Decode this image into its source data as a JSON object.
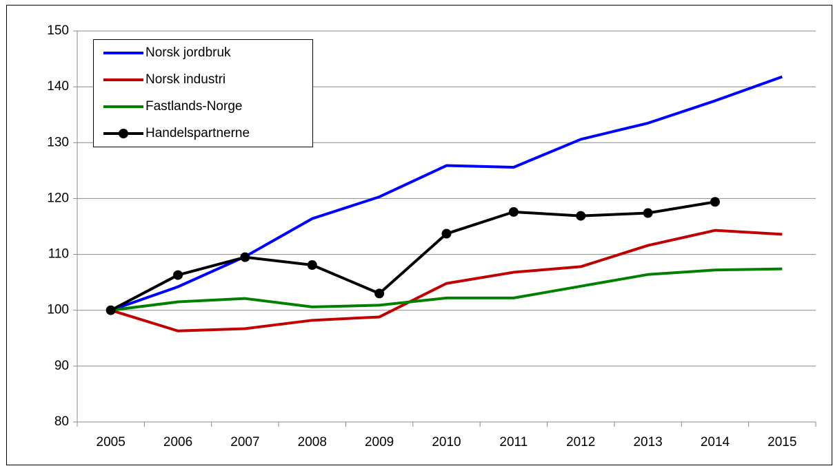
{
  "chart_data": {
    "type": "line",
    "categories": [
      "2005",
      "2006",
      "2007",
      "2008",
      "2009",
      "2010",
      "2011",
      "2012",
      "2013",
      "2014",
      "2015"
    ],
    "series": [
      {
        "name": "Norsk jordbruk",
        "color": "#0000ff",
        "markers": false,
        "values": [
          100,
          104.2,
          109.6,
          116.4,
          120.3,
          125.9,
          125.6,
          130.6,
          133.5,
          137.5,
          141.8
        ]
      },
      {
        "name": "Norsk industri",
        "color": "#c00000",
        "markers": false,
        "values": [
          100,
          96.3,
          96.7,
          98.2,
          98.8,
          104.8,
          106.8,
          107.8,
          111.6,
          114.3,
          113.6
        ]
      },
      {
        "name": "Fastlands-Norge",
        "color": "#008000",
        "markers": false,
        "values": [
          100,
          101.5,
          102.1,
          100.6,
          100.9,
          102.2,
          102.2,
          104.3,
          106.4,
          107.2,
          107.4
        ]
      },
      {
        "name": "Handelspartnerne",
        "color": "#000000",
        "markers": true,
        "values": [
          100,
          106.3,
          109.5,
          108.1,
          103.0,
          113.7,
          117.6,
          116.9,
          117.4,
          119.4,
          null
        ]
      }
    ],
    "ylim": [
      80,
      150
    ],
    "yticks": [
      80,
      90,
      100,
      110,
      120,
      130,
      140,
      150
    ],
    "grid": true,
    "legend": "upper left"
  }
}
